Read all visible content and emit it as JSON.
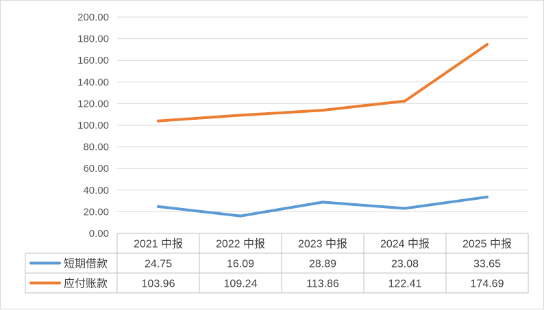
{
  "chart_data": {
    "type": "line",
    "categories": [
      "2021 中报",
      "2022 中报",
      "2023 中报",
      "2024 中报",
      "2025 中报"
    ],
    "series": [
      {
        "name": "短期借款",
        "values": [
          24.75,
          16.09,
          28.89,
          23.08,
          33.65
        ],
        "color": "#5b9bd5"
      },
      {
        "name": "应付账款",
        "values": [
          103.96,
          109.24,
          113.86,
          122.41,
          174.69
        ],
        "color": "#ed7d31"
      }
    ],
    "y_ticks": [
      "0.00",
      "20.00",
      "40.00",
      "60.00",
      "80.00",
      "100.00",
      "120.00",
      "140.00",
      "160.00",
      "180.00",
      "200.00"
    ],
    "ylim": [
      0,
      200
    ],
    "grid": true,
    "legend": "data-table",
    "table": {
      "rows": [
        [
          "24.75",
          "16.09",
          "28.89",
          "23.08",
          "33.65"
        ],
        [
          "103.96",
          "109.24",
          "113.86",
          "122.41",
          "174.69"
        ]
      ]
    }
  }
}
